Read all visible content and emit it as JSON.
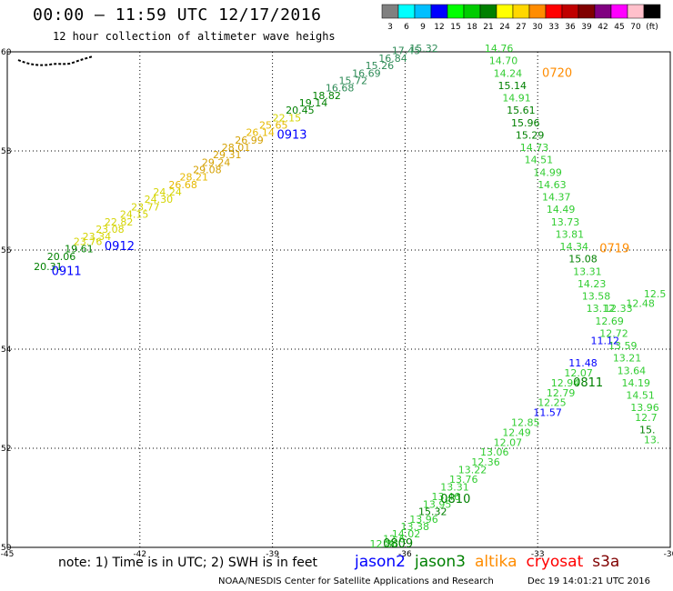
{
  "header": {
    "title": "00:00 – 11:59 UTC 12/17/2016",
    "subtitle": "12 hour collection of altimeter wave heighs"
  },
  "colorbar": {
    "colors": [
      "#808080",
      "#00ffff",
      "#00bfff",
      "#0000ff",
      "#00ff00",
      "#00cc00",
      "#008000",
      "#ffff00",
      "#ffd700",
      "#ff8c00",
      "#ff0000",
      "#c00000",
      "#800000",
      "#800080",
      "#ff00ff",
      "#ffc0cb",
      "#000000"
    ],
    "labels": [
      "3",
      "6",
      "9",
      "12",
      "15",
      "18",
      "21",
      "24",
      "27",
      "30",
      "33",
      "36",
      "39",
      "42",
      "45",
      "70",
      "(ft)"
    ]
  },
  "chart_data": {
    "type": "scatter",
    "title": "00:00 – 11:59 UTC 12/17/2016",
    "subtitle": "12 hour collection of altimeter wave heighs",
    "xlabel": "",
    "ylabel": "",
    "xlim": [
      -45,
      -30
    ],
    "ylim": [
      50,
      60
    ],
    "grid": true,
    "x_ticks": [
      "-45",
      "-42",
      "-39",
      "-36",
      "-33",
      "-30"
    ],
    "y_ticks": [
      "50",
      "52",
      "54",
      "56",
      "58",
      "60"
    ],
    "legend_position": "bottom-right",
    "series": [
      {
        "name": "jason2",
        "color": "#0000ff"
      },
      {
        "name": "jason3",
        "color": "#008000"
      },
      {
        "name": "altika",
        "color": "#ff8c00"
      },
      {
        "name": "cryosat",
        "color": "#ff0000"
      },
      {
        "name": "s3a",
        "color": "#800000"
      }
    ],
    "points": [
      {
        "lon": -44.4,
        "lat": 55.6,
        "text": "20.31",
        "color": "#008000"
      },
      {
        "lon": -44.1,
        "lat": 55.8,
        "text": "20.06",
        "color": "#008000"
      },
      {
        "lon": -43.7,
        "lat": 55.95,
        "text": "19.61",
        "color": "#008000"
      },
      {
        "lon": -43.5,
        "lat": 56.1,
        "text": "23.76",
        "color": "#d4d400"
      },
      {
        "lon": -43.3,
        "lat": 56.2,
        "text": "23.34",
        "color": "#d4d400"
      },
      {
        "lon": -43.0,
        "lat": 56.35,
        "text": "23.08",
        "color": "#d4d400"
      },
      {
        "lon": -42.8,
        "lat": 56.5,
        "text": "22.82",
        "color": "#d4d400"
      },
      {
        "lon": -42.45,
        "lat": 56.65,
        "text": "24.15",
        "color": "#d4d400"
      },
      {
        "lon": -42.2,
        "lat": 56.8,
        "text": "23.77",
        "color": "#d4d400"
      },
      {
        "lon": -41.9,
        "lat": 56.95,
        "text": "24.30",
        "color": "#d4d400"
      },
      {
        "lon": -41.7,
        "lat": 57.1,
        "text": "24.24",
        "color": "#d4d400"
      },
      {
        "lon": -41.35,
        "lat": 57.25,
        "text": "26.68",
        "color": "#e6b800"
      },
      {
        "lon": -41.1,
        "lat": 57.4,
        "text": "28.21",
        "color": "#e6b800"
      },
      {
        "lon": -40.8,
        "lat": 57.55,
        "text": "29.08",
        "color": "#d4a000"
      },
      {
        "lon": -40.6,
        "lat": 57.7,
        "text": "29.24",
        "color": "#d4a000"
      },
      {
        "lon": -40.35,
        "lat": 57.85,
        "text": "29.31",
        "color": "#d4a000"
      },
      {
        "lon": -40.15,
        "lat": 58.0,
        "text": "28.01",
        "color": "#d4a000"
      },
      {
        "lon": -39.85,
        "lat": 58.15,
        "text": "26.99",
        "color": "#d4a000"
      },
      {
        "lon": -39.6,
        "lat": 58.3,
        "text": "26.14",
        "color": "#e6b800"
      },
      {
        "lon": -39.3,
        "lat": 58.45,
        "text": "25.65",
        "color": "#e6b800"
      },
      {
        "lon": -39.0,
        "lat": 58.6,
        "text": "22.15",
        "color": "#d4d400"
      },
      {
        "lon": -38.7,
        "lat": 58.75,
        "text": "20.45",
        "color": "#008000"
      },
      {
        "lon": -38.4,
        "lat": 58.9,
        "text": "19.14",
        "color": "#008000"
      },
      {
        "lon": -38.1,
        "lat": 59.05,
        "text": "18.82",
        "color": "#008000"
      },
      {
        "lon": -37.8,
        "lat": 59.2,
        "text": "16.68",
        "color": "#2e8b57"
      },
      {
        "lon": -37.5,
        "lat": 59.35,
        "text": "15.72",
        "color": "#2e8b57"
      },
      {
        "lon": -37.2,
        "lat": 59.5,
        "text": "16.69",
        "color": "#2e8b57"
      },
      {
        "lon": -36.9,
        "lat": 59.65,
        "text": "15.26",
        "color": "#2e8b57"
      },
      {
        "lon": -36.6,
        "lat": 59.8,
        "text": "16.84",
        "color": "#2e8b57"
      },
      {
        "lon": -36.3,
        "lat": 59.95,
        "text": "17.45",
        "color": "#2e8b57"
      },
      {
        "lon": -35.9,
        "lat": 60.0,
        "text": "15.32",
        "color": "#2e8b57"
      },
      {
        "lon": -34.2,
        "lat": 60.0,
        "text": "14.76",
        "color": "#32cd32"
      },
      {
        "lon": -34.1,
        "lat": 59.75,
        "text": "14.70",
        "color": "#32cd32"
      },
      {
        "lon": -34.0,
        "lat": 59.5,
        "text": "14.24",
        "color": "#32cd32"
      },
      {
        "lon": -33.9,
        "lat": 59.25,
        "text": "15.14",
        "color": "#008000"
      },
      {
        "lon": -33.8,
        "lat": 59.0,
        "text": "14.91",
        "color": "#32cd32"
      },
      {
        "lon": -33.7,
        "lat": 58.75,
        "text": "15.61",
        "color": "#008000"
      },
      {
        "lon": -33.6,
        "lat": 58.5,
        "text": "15.96",
        "color": "#008000"
      },
      {
        "lon": -33.5,
        "lat": 58.25,
        "text": "15.29",
        "color": "#008000"
      },
      {
        "lon": -33.4,
        "lat": 58.0,
        "text": "14.73",
        "color": "#32cd32"
      },
      {
        "lon": -33.3,
        "lat": 57.75,
        "text": "14.51",
        "color": "#32cd32"
      },
      {
        "lon": -33.1,
        "lat": 57.5,
        "text": "14.99",
        "color": "#32cd32"
      },
      {
        "lon": -33.0,
        "lat": 57.25,
        "text": "14.63",
        "color": "#32cd32"
      },
      {
        "lon": -32.9,
        "lat": 57.0,
        "text": "14.37",
        "color": "#32cd32"
      },
      {
        "lon": -32.8,
        "lat": 56.75,
        "text": "14.49",
        "color": "#32cd32"
      },
      {
        "lon": -32.7,
        "lat": 56.5,
        "text": "13.73",
        "color": "#32cd32"
      },
      {
        "lon": -32.6,
        "lat": 56.25,
        "text": "13.81",
        "color": "#32cd32"
      },
      {
        "lon": -32.5,
        "lat": 56.0,
        "text": "14.34",
        "color": "#32cd32"
      },
      {
        "lon": -32.3,
        "lat": 55.75,
        "text": "15.08",
        "color": "#008000"
      },
      {
        "lon": -32.2,
        "lat": 55.5,
        "text": "13.31",
        "color": "#32cd32"
      },
      {
        "lon": -32.1,
        "lat": 55.25,
        "text": "14.23",
        "color": "#32cd32"
      },
      {
        "lon": -32.0,
        "lat": 55.0,
        "text": "13.58",
        "color": "#32cd32"
      },
      {
        "lon": -31.9,
        "lat": 54.75,
        "text": "13.12",
        "color": "#32cd32"
      },
      {
        "lon": -31.5,
        "lat": 54.75,
        "text": "12.33",
        "color": "#32cd32"
      },
      {
        "lon": -31.0,
        "lat": 54.85,
        "text": "12.48",
        "color": "#32cd32"
      },
      {
        "lon": -30.6,
        "lat": 55.05,
        "text": "12.5",
        "color": "#32cd32"
      },
      {
        "lon": -31.7,
        "lat": 54.5,
        "text": "12.69",
        "color": "#32cd32"
      },
      {
        "lon": -31.6,
        "lat": 54.25,
        "text": "12.72",
        "color": "#32cd32"
      },
      {
        "lon": -31.4,
        "lat": 54.0,
        "text": "13.59",
        "color": "#32cd32"
      },
      {
        "lon": -31.3,
        "lat": 53.75,
        "text": "13.21",
        "color": "#32cd32"
      },
      {
        "lon": -31.2,
        "lat": 53.5,
        "text": "13.64",
        "color": "#32cd32"
      },
      {
        "lon": -31.1,
        "lat": 53.25,
        "text": "14.19",
        "color": "#32cd32"
      },
      {
        "lon": -31.0,
        "lat": 53.0,
        "text": "14.51",
        "color": "#32cd32"
      },
      {
        "lon": -30.9,
        "lat": 52.75,
        "text": "13.96",
        "color": "#32cd32"
      },
      {
        "lon": -30.8,
        "lat": 52.55,
        "text": "12.7",
        "color": "#32cd32"
      },
      {
        "lon": -30.7,
        "lat": 52.3,
        "text": "15.",
        "color": "#008000"
      },
      {
        "lon": -30.6,
        "lat": 52.1,
        "text": "13.",
        "color": "#32cd32"
      },
      {
        "lon": -31.8,
        "lat": 54.1,
        "text": "11.12",
        "color": "#0000ff"
      },
      {
        "lon": -32.3,
        "lat": 53.65,
        "text": "11.48",
        "color": "#0000ff"
      },
      {
        "lon": -32.4,
        "lat": 53.45,
        "text": "12.07",
        "color": "#32cd32"
      },
      {
        "lon": -32.7,
        "lat": 53.25,
        "text": "12.94",
        "color": "#32cd32"
      },
      {
        "lon": -32.8,
        "lat": 53.05,
        "text": "12.79",
        "color": "#32cd32"
      },
      {
        "lon": -33.0,
        "lat": 52.85,
        "text": "12.25",
        "color": "#32cd32"
      },
      {
        "lon": -33.1,
        "lat": 52.65,
        "text": "11.57",
        "color": "#0000ff"
      },
      {
        "lon": -33.6,
        "lat": 52.45,
        "text": "12.85",
        "color": "#32cd32"
      },
      {
        "lon": -33.8,
        "lat": 52.25,
        "text": "12.49",
        "color": "#32cd32"
      },
      {
        "lon": -34.0,
        "lat": 52.05,
        "text": "12.07",
        "color": "#32cd32"
      },
      {
        "lon": -34.3,
        "lat": 51.85,
        "text": "13.06",
        "color": "#32cd32"
      },
      {
        "lon": -34.5,
        "lat": 51.65,
        "text": "12.36",
        "color": "#32cd32"
      },
      {
        "lon": -34.8,
        "lat": 51.5,
        "text": "13.22",
        "color": "#32cd32"
      },
      {
        "lon": -35.0,
        "lat": 51.3,
        "text": "13.76",
        "color": "#32cd32"
      },
      {
        "lon": -35.2,
        "lat": 51.15,
        "text": "13.31",
        "color": "#32cd32"
      },
      {
        "lon": -35.4,
        "lat": 50.95,
        "text": "13.46",
        "color": "#32cd32"
      },
      {
        "lon": -35.6,
        "lat": 50.8,
        "text": "13.95",
        "color": "#32cd32"
      },
      {
        "lon": -35.7,
        "lat": 50.65,
        "text": "15.32",
        "color": "#008000"
      },
      {
        "lon": -35.9,
        "lat": 50.5,
        "text": "13.96",
        "color": "#32cd32"
      },
      {
        "lon": -36.1,
        "lat": 50.35,
        "text": "13.38",
        "color": "#32cd32"
      },
      {
        "lon": -36.3,
        "lat": 50.2,
        "text": "14.02",
        "color": "#32cd32"
      },
      {
        "lon": -36.5,
        "lat": 50.1,
        "text": "12.6",
        "color": "#32cd32"
      },
      {
        "lon": -36.8,
        "lat": 50.0,
        "text": "12.86",
        "color": "#32cd32"
      }
    ],
    "track_tags": [
      {
        "lon": -44.0,
        "lat": 55.5,
        "text": "0911",
        "color": "#0000ff"
      },
      {
        "lon": -42.8,
        "lat": 56.0,
        "text": "0912",
        "color": "#0000ff"
      },
      {
        "lon": -38.9,
        "lat": 58.25,
        "text": "0913",
        "color": "#0000ff"
      },
      {
        "lon": -32.9,
        "lat": 59.5,
        "text": "0720",
        "color": "#ff8c00"
      },
      {
        "lon": -31.6,
        "lat": 55.95,
        "text": "0719",
        "color": "#ff8c00"
      },
      {
        "lon": -32.2,
        "lat": 53.25,
        "text": "0811",
        "color": "#008000"
      },
      {
        "lon": -35.2,
        "lat": 50.9,
        "text": "0810",
        "color": "#008000"
      },
      {
        "lon": -36.5,
        "lat": 50.0,
        "text": "0809",
        "color": "#008000"
      }
    ]
  },
  "footer": {
    "note": "note: 1) Time is in UTC; 2) SWH is in feet",
    "credit": "NOAA/NESDIS Center for Satellite Applications and Research",
    "timestamp": "Dec 19 14:01:21 UTC 2016"
  }
}
